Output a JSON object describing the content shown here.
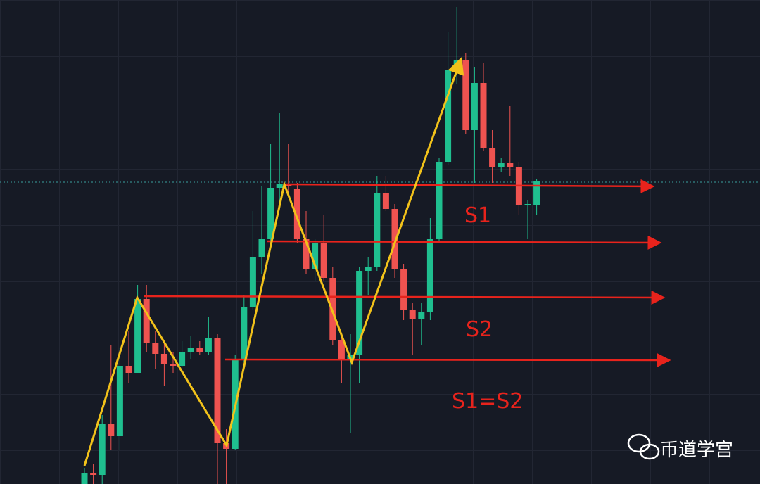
{
  "chart_data": {
    "type": "candlestick",
    "open": [
      0,
      16,
      13,
      85,
      68,
      168,
      158,
      263,
      200,
      185,
      171,
      168,
      188,
      193,
      188,
      208,
      58,
      50,
      178,
      251,
      323,
      348,
      421,
      426,
      420,
      348,
      305,
      343,
      293,
      205,
      178,
      183,
      303,
      308,
      413,
      391,
      305,
      248,
      235,
      245,
      348,
      458,
      588,
      603,
      503,
      570,
      478,
      451,
      456,
      451,
      396,
      396
    ],
    "high": [
      23,
      28,
      98,
      198,
      193,
      218,
      283,
      283,
      218,
      203,
      188,
      203,
      210,
      203,
      238,
      213,
      78,
      183,
      268,
      388,
      423,
      483,
      528,
      483,
      428,
      388,
      348,
      383,
      308,
      213,
      213,
      308,
      323,
      438,
      438,
      398,
      313,
      258,
      258,
      378,
      463,
      643,
      678,
      613,
      593,
      598,
      503,
      463,
      538,
      458,
      403,
      433
    ],
    "low": [
      0,
      0,
      0,
      48,
      48,
      143,
      158,
      188,
      163,
      140,
      158,
      166,
      178,
      183,
      183,
      0,
      0,
      48,
      173,
      248,
      298,
      343,
      398,
      413,
      343,
      298,
      288,
      288,
      198,
      143,
      73,
      143,
      268,
      303,
      388,
      293,
      233,
      183,
      198,
      233,
      343,
      453,
      568,
      498,
      428,
      473,
      428,
      443,
      438,
      383,
      348,
      383
    ],
    "close": [
      16,
      13,
      85,
      68,
      168,
      158,
      263,
      200,
      185,
      171,
      168,
      188,
      193,
      188,
      208,
      58,
      50,
      178,
      251,
      323,
      348,
      421,
      426,
      423,
      348,
      305,
      343,
      293,
      205,
      178,
      183,
      303,
      308,
      413,
      391,
      305,
      248,
      235,
      245,
      348,
      458,
      588,
      603,
      503,
      570,
      478,
      451,
      456,
      451,
      396,
      398,
      430
    ],
    "ylim": [
      0,
      688
    ],
    "up_color": "#1fbf8f",
    "down_color": "#ef5350",
    "annotations": [
      "S1",
      "S2",
      "S1=S2"
    ]
  },
  "watermark": "币道学宫"
}
